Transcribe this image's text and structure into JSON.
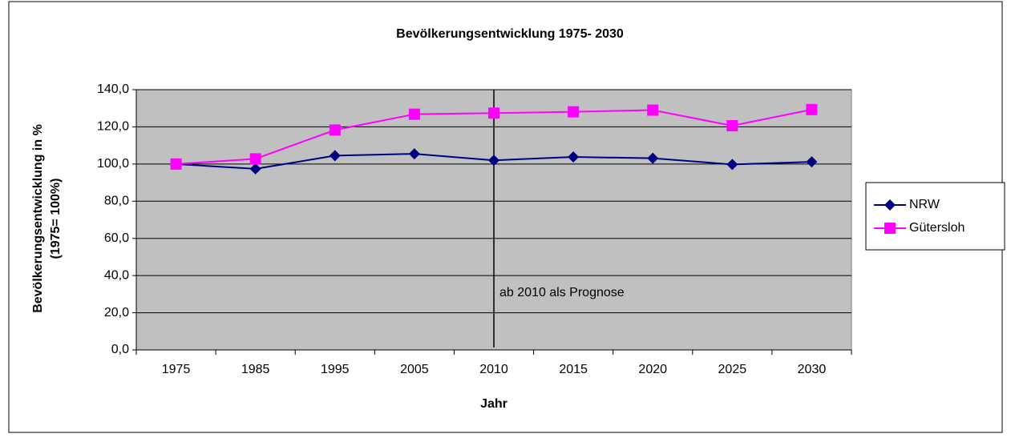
{
  "chart_data": {
    "type": "line",
    "title": "Bevölkerungsentwicklung 1975- 2030",
    "x_label": "Jahr",
    "y_label": [
      "Bevölkerungsentwicklung in %",
      "(1975= 100%)"
    ],
    "annotation": "ab 2010 als Prognose",
    "categories": [
      "1975",
      "1985",
      "1995",
      "2005",
      "2010",
      "2015",
      "2020",
      "2025",
      "2030"
    ],
    "series": [
      {
        "name": "NRW",
        "color": "#000080",
        "marker": "diamond",
        "values": [
          100,
          97.4,
          104.5,
          105.5,
          102,
          103.8,
          103.1,
          99.8,
          101.2
        ]
      },
      {
        "name": "Gütersloh",
        "color": "#ff00ff",
        "marker": "square",
        "values": [
          100,
          102.8,
          118.3,
          126.8,
          127.4,
          128.1,
          129,
          120.6,
          129.3
        ]
      }
    ],
    "ylim": [
      0,
      140
    ],
    "yticks": [
      {
        "value": 0,
        "label": "0,0"
      },
      {
        "value": 20,
        "label": "20,0"
      },
      {
        "value": 40,
        "label": "40,0"
      },
      {
        "value": 60,
        "label": "60,0"
      },
      {
        "value": 80,
        "label": "80,0"
      },
      {
        "value": 100,
        "label": "100,0"
      },
      {
        "value": 120,
        "label": "120,0"
      },
      {
        "value": 140,
        "label": "140,0"
      }
    ],
    "grid": true,
    "legend": "right"
  }
}
